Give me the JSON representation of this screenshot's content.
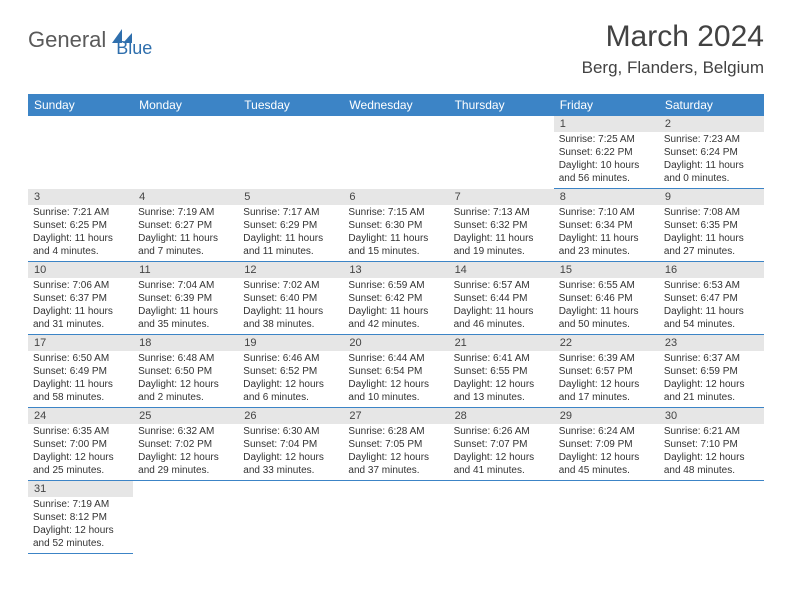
{
  "brand": {
    "part1": "General",
    "part2": "Blue"
  },
  "title": "March 2024",
  "location": "Berg, Flanders, Belgium",
  "colors": {
    "header_bg": "#3c84c6",
    "header_text": "#ffffff",
    "daynum_bg": "#e6e6e6",
    "border": "#3c84c6",
    "brand_gray": "#5a5a5a",
    "brand_blue": "#2f6fad"
  },
  "weekdays": [
    "Sunday",
    "Monday",
    "Tuesday",
    "Wednesday",
    "Thursday",
    "Friday",
    "Saturday"
  ],
  "weeks": [
    [
      null,
      null,
      null,
      null,
      null,
      {
        "n": "1",
        "sr": "7:25 AM",
        "ss": "6:22 PM",
        "dl": "10 hours and 56 minutes."
      },
      {
        "n": "2",
        "sr": "7:23 AM",
        "ss": "6:24 PM",
        "dl": "11 hours and 0 minutes."
      }
    ],
    [
      {
        "n": "3",
        "sr": "7:21 AM",
        "ss": "6:25 PM",
        "dl": "11 hours and 4 minutes."
      },
      {
        "n": "4",
        "sr": "7:19 AM",
        "ss": "6:27 PM",
        "dl": "11 hours and 7 minutes."
      },
      {
        "n": "5",
        "sr": "7:17 AM",
        "ss": "6:29 PM",
        "dl": "11 hours and 11 minutes."
      },
      {
        "n": "6",
        "sr": "7:15 AM",
        "ss": "6:30 PM",
        "dl": "11 hours and 15 minutes."
      },
      {
        "n": "7",
        "sr": "7:13 AM",
        "ss": "6:32 PM",
        "dl": "11 hours and 19 minutes."
      },
      {
        "n": "8",
        "sr": "7:10 AM",
        "ss": "6:34 PM",
        "dl": "11 hours and 23 minutes."
      },
      {
        "n": "9",
        "sr": "7:08 AM",
        "ss": "6:35 PM",
        "dl": "11 hours and 27 minutes."
      }
    ],
    [
      {
        "n": "10",
        "sr": "7:06 AM",
        "ss": "6:37 PM",
        "dl": "11 hours and 31 minutes."
      },
      {
        "n": "11",
        "sr": "7:04 AM",
        "ss": "6:39 PM",
        "dl": "11 hours and 35 minutes."
      },
      {
        "n": "12",
        "sr": "7:02 AM",
        "ss": "6:40 PM",
        "dl": "11 hours and 38 minutes."
      },
      {
        "n": "13",
        "sr": "6:59 AM",
        "ss": "6:42 PM",
        "dl": "11 hours and 42 minutes."
      },
      {
        "n": "14",
        "sr": "6:57 AM",
        "ss": "6:44 PM",
        "dl": "11 hours and 46 minutes."
      },
      {
        "n": "15",
        "sr": "6:55 AM",
        "ss": "6:46 PM",
        "dl": "11 hours and 50 minutes."
      },
      {
        "n": "16",
        "sr": "6:53 AM",
        "ss": "6:47 PM",
        "dl": "11 hours and 54 minutes."
      }
    ],
    [
      {
        "n": "17",
        "sr": "6:50 AM",
        "ss": "6:49 PM",
        "dl": "11 hours and 58 minutes."
      },
      {
        "n": "18",
        "sr": "6:48 AM",
        "ss": "6:50 PM",
        "dl": "12 hours and 2 minutes."
      },
      {
        "n": "19",
        "sr": "6:46 AM",
        "ss": "6:52 PM",
        "dl": "12 hours and 6 minutes."
      },
      {
        "n": "20",
        "sr": "6:44 AM",
        "ss": "6:54 PM",
        "dl": "12 hours and 10 minutes."
      },
      {
        "n": "21",
        "sr": "6:41 AM",
        "ss": "6:55 PM",
        "dl": "12 hours and 13 minutes."
      },
      {
        "n": "22",
        "sr": "6:39 AM",
        "ss": "6:57 PM",
        "dl": "12 hours and 17 minutes."
      },
      {
        "n": "23",
        "sr": "6:37 AM",
        "ss": "6:59 PM",
        "dl": "12 hours and 21 minutes."
      }
    ],
    [
      {
        "n": "24",
        "sr": "6:35 AM",
        "ss": "7:00 PM",
        "dl": "12 hours and 25 minutes."
      },
      {
        "n": "25",
        "sr": "6:32 AM",
        "ss": "7:02 PM",
        "dl": "12 hours and 29 minutes."
      },
      {
        "n": "26",
        "sr": "6:30 AM",
        "ss": "7:04 PM",
        "dl": "12 hours and 33 minutes."
      },
      {
        "n": "27",
        "sr": "6:28 AM",
        "ss": "7:05 PM",
        "dl": "12 hours and 37 minutes."
      },
      {
        "n": "28",
        "sr": "6:26 AM",
        "ss": "7:07 PM",
        "dl": "12 hours and 41 minutes."
      },
      {
        "n": "29",
        "sr": "6:24 AM",
        "ss": "7:09 PM",
        "dl": "12 hours and 45 minutes."
      },
      {
        "n": "30",
        "sr": "6:21 AM",
        "ss": "7:10 PM",
        "dl": "12 hours and 48 minutes."
      }
    ],
    [
      {
        "n": "31",
        "sr": "7:19 AM",
        "ss": "8:12 PM",
        "dl": "12 hours and 52 minutes."
      },
      null,
      null,
      null,
      null,
      null,
      null
    ]
  ],
  "labels": {
    "sunrise": "Sunrise:",
    "sunset": "Sunset:",
    "daylight": "Daylight:"
  }
}
